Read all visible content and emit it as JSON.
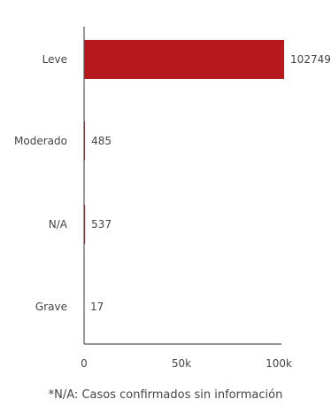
{
  "chart_data": {
    "type": "bar",
    "orientation": "horizontal",
    "categories": [
      "Leve",
      "Moderado",
      "N/A",
      "Grave"
    ],
    "values": [
      102749,
      485,
      537,
      17
    ],
    "value_labels": [
      "102749",
      "485",
      "537",
      "17"
    ],
    "x_ticks": [
      0,
      50000,
      100000
    ],
    "x_tick_labels": [
      "0",
      "50k",
      "100k"
    ],
    "xlim": [
      0,
      100000
    ],
    "bar_color": "#b5191e",
    "grid": false,
    "legend": "none",
    "title": "",
    "xlabel": "",
    "ylabel": ""
  },
  "footnote": "*N/A: Casos confirmados sin información"
}
